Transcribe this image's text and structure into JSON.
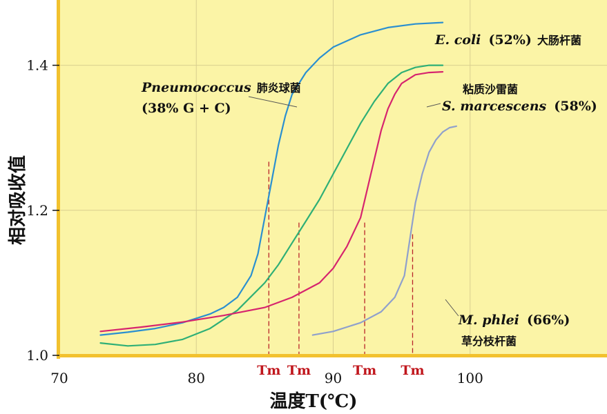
{
  "chart_data": {
    "type": "line",
    "xlabel": "温度T(℃)",
    "ylabel": "相对吸收值",
    "xlim": [
      70,
      110
    ],
    "ylim": [
      1.0,
      1.49
    ],
    "x_ticks": [
      "70",
      "80",
      "90",
      "100"
    ],
    "y_ticks": [
      "1.0",
      "1.2",
      "1.4"
    ],
    "grid": true,
    "background": "#fbf4a6",
    "axis_color": "#f2c12e",
    "series": [
      {
        "id": "pneumococcus",
        "color": "#2a8fd0",
        "x": [
          73,
          75,
          77,
          79,
          81,
          82,
          83,
          84,
          84.5,
          85,
          85.5,
          86,
          86.5,
          87,
          88,
          89,
          90,
          92,
          94,
          96,
          98
        ],
        "y": [
          1.028,
          1.032,
          1.037,
          1.045,
          1.057,
          1.066,
          1.08,
          1.11,
          1.14,
          1.19,
          1.24,
          1.29,
          1.33,
          1.36,
          1.39,
          1.41,
          1.425,
          1.442,
          1.452,
          1.457,
          1.459
        ]
      },
      {
        "id": "e_coli",
        "color": "#2eaf76",
        "x": [
          73,
          75,
          77,
          79,
          81,
          83,
          85,
          86,
          87,
          88,
          89,
          90,
          91,
          92,
          93,
          94,
          95,
          96,
          97,
          98
        ],
        "y": [
          1.017,
          1.013,
          1.015,
          1.022,
          1.037,
          1.062,
          1.1,
          1.125,
          1.155,
          1.185,
          1.215,
          1.25,
          1.285,
          1.32,
          1.35,
          1.375,
          1.39,
          1.397,
          1.4,
          1.4
        ]
      },
      {
        "id": "s_marcescens",
        "color": "#d6246e",
        "x": [
          73,
          76,
          79,
          82,
          85,
          87,
          89,
          90,
          91,
          92,
          92.5,
          93,
          93.5,
          94,
          94.5,
          95,
          96,
          97,
          98
        ],
        "y": [
          1.033,
          1.039,
          1.046,
          1.055,
          1.066,
          1.08,
          1.1,
          1.12,
          1.15,
          1.19,
          1.23,
          1.27,
          1.31,
          1.34,
          1.36,
          1.375,
          1.387,
          1.39,
          1.391
        ]
      },
      {
        "id": "m_phlei",
        "color": "#8fa0cc",
        "x": [
          88.5,
          90,
          92,
          93.5,
          94.5,
          95.2,
          95.6,
          96,
          96.5,
          97,
          97.5,
          98,
          98.5,
          99
        ],
        "y": [
          1.028,
          1.033,
          1.045,
          1.06,
          1.08,
          1.11,
          1.16,
          1.21,
          1.25,
          1.28,
          1.297,
          1.308,
          1.314,
          1.316
        ]
      }
    ],
    "tm_markers": [
      {
        "label": "Tm",
        "x": 85.3,
        "y": 1.267,
        "color": "#2a8fd0"
      },
      {
        "label": "Tm",
        "x": 87.5,
        "y": 1.183,
        "color": "#2eaf76"
      },
      {
        "label": "Tm",
        "x": 92.3,
        "y": 1.183,
        "color": "#d6246e"
      },
      {
        "label": "Tm",
        "x": 95.8,
        "y": 1.167,
        "color": "#8fa0cc"
      }
    ],
    "annotations": {
      "pneumococcus": {
        "name": "Pneumococcus",
        "cn": "肺炎球菌",
        "gc": "(38% G + C)"
      },
      "e_coli": {
        "name": "E. coli",
        "gc": "(52%)",
        "cn": "大肠杆菌"
      },
      "s_marcescens": {
        "cn": "粘质沙雷菌",
        "name": "S. marcescens",
        "gc": "(58%)"
      },
      "m_phlei": {
        "name": "M. phlei",
        "gc": "(66%)",
        "cn": "草分枝杆菌"
      }
    }
  }
}
